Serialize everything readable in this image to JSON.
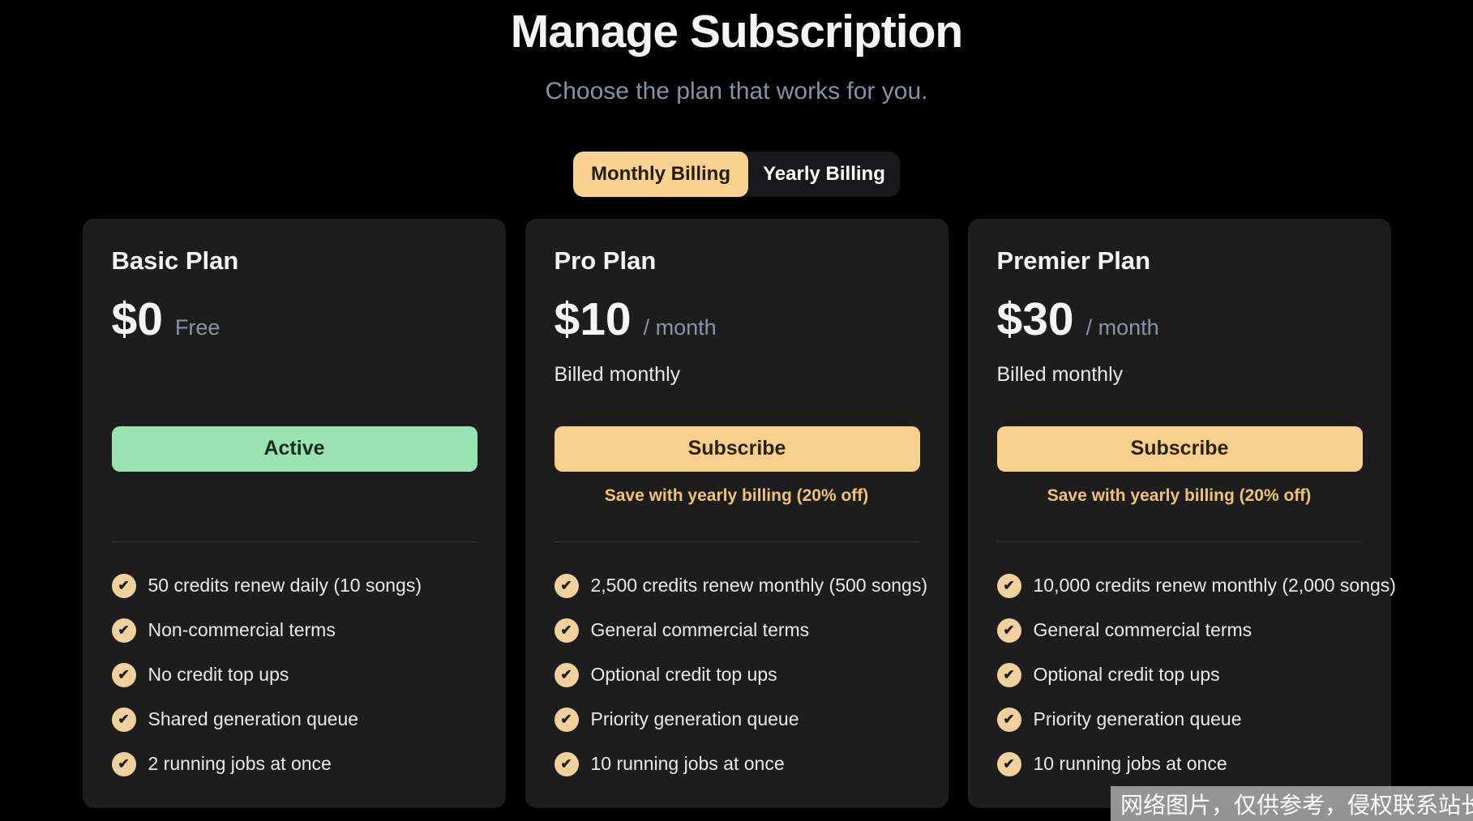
{
  "header": {
    "title": "Manage Subscription",
    "subtitle": "Choose the plan that works for you."
  },
  "billing_toggle": {
    "monthly_label": "Monthly Billing",
    "yearly_label": "Yearly Billing",
    "selected": "monthly"
  },
  "plans": [
    {
      "name": "Basic Plan",
      "price": "$0",
      "price_suffix": "Free",
      "billing_note": "",
      "button_label": "Active",
      "button_type": "active",
      "save_note": "",
      "features": [
        "50 credits renew daily (10 songs)",
        "Non-commercial terms",
        "No credit top ups",
        "Shared generation queue",
        "2 running jobs at once"
      ]
    },
    {
      "name": "Pro Plan",
      "price": "$10",
      "price_suffix": "/ month",
      "billing_note": "Billed monthly",
      "button_label": "Subscribe",
      "button_type": "subscribe",
      "save_note": "Save with yearly billing (20% off)",
      "features": [
        "2,500 credits renew monthly (500 songs)",
        "General commercial terms",
        "Optional credit top ups",
        "Priority generation queue",
        "10 running jobs at once"
      ]
    },
    {
      "name": "Premier Plan",
      "price": "$30",
      "price_suffix": "/ month",
      "billing_note": "Billed monthly",
      "button_label": "Subscribe",
      "button_type": "subscribe",
      "save_note": "Save with yearly billing (20% off)",
      "features": [
        "10,000 credits renew monthly (2,000 songs)",
        "General commercial terms",
        "Optional credit top ups",
        "Priority generation queue",
        "10 running jobs at once"
      ]
    }
  ],
  "icons": {
    "check": "✔"
  },
  "colors": {
    "page_bg": "#000000",
    "card_bg": "#1d1d1e",
    "accent_cream": "#f7d08d",
    "accent_green": "#97e3b2",
    "save_text_color": "#eec473",
    "subtitle_color": "#8791a3"
  },
  "watermark": {
    "text": "网络图片，仅供参考，侵权联系站长删除"
  }
}
